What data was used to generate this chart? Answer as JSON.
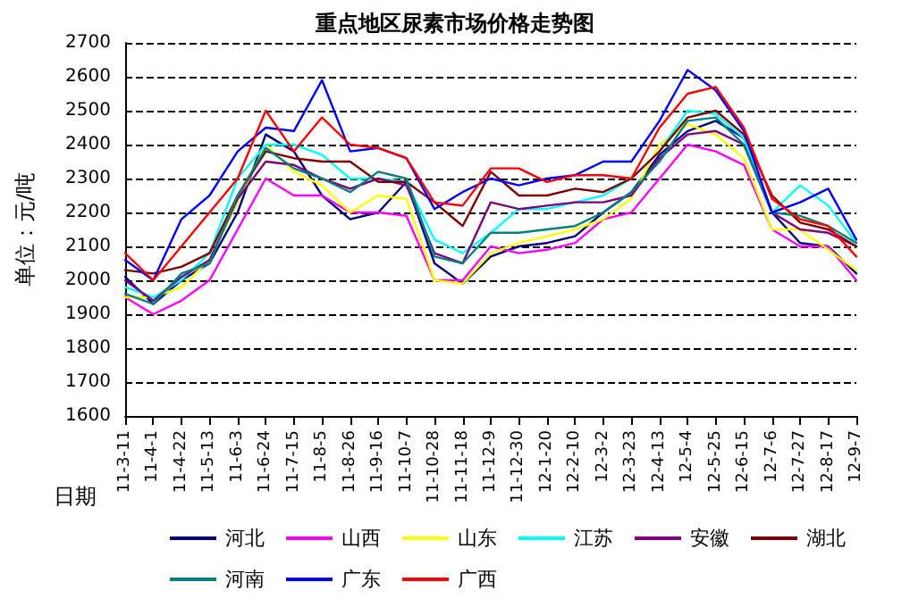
{
  "chart_data": {
    "type": "line",
    "title": "重点地区尿素市场价格走势图",
    "xlabel": "日期",
    "ylabel": "单位：元/吨",
    "categories": [
      "11-3-11",
      "11-4-1",
      "11-4-22",
      "11-5-13",
      "11-6-3",
      "11-6-24",
      "11-7-15",
      "11-8-5",
      "11-8-26",
      "11-9-16",
      "11-10-7",
      "11-10-28",
      "11-11-18",
      "11-12-9",
      "11-12-30",
      "12-1-20",
      "12-2-10",
      "12-3-2",
      "12-3-23",
      "12-4-13",
      "12-5-4",
      "12-5-25",
      "12-6-15",
      "12-7-6",
      "12-7-27",
      "12-8-17",
      "12-9-7"
    ],
    "series": [
      {
        "name": "河北",
        "color": "#000080",
        "values": [
          2010,
          1930,
          2000,
          2050,
          2200,
          2430,
          2380,
          2250,
          2180,
          2200,
          2290,
          2050,
          1990,
          2070,
          2100,
          2110,
          2130,
          2200,
          2260,
          2370,
          2440,
          2470,
          2420,
          2200,
          2110,
          2100,
          2020
        ]
      },
      {
        "name": "山西",
        "color": "#ff00ff",
        "values": [
          1950,
          1900,
          1940,
          2000,
          2150,
          2300,
          2250,
          2250,
          2200,
          2200,
          2190,
          2000,
          2000,
          2100,
          2080,
          2090,
          2110,
          2180,
          2200,
          2300,
          2400,
          2380,
          2340,
          2150,
          2100,
          2100,
          2000
        ]
      },
      {
        "name": "山东",
        "color": "#ffff00",
        "values": [
          1950,
          1950,
          1980,
          2060,
          2230,
          2400,
          2320,
          2280,
          2200,
          2250,
          2240,
          2000,
          1990,
          2080,
          2110,
          2130,
          2150,
          2180,
          2240,
          2400,
          2460,
          2430,
          2360,
          2150,
          2150,
          2090,
          2030
        ]
      },
      {
        "name": "江苏",
        "color": "#00ffff",
        "values": [
          1980,
          1950,
          2000,
          2080,
          2300,
          2400,
          2400,
          2370,
          2300,
          2300,
          2290,
          2120,
          2080,
          2140,
          2210,
          2210,
          2230,
          2250,
          2300,
          2380,
          2500,
          2490,
          2420,
          2200,
          2280,
          2220,
          2110
        ]
      },
      {
        "name": "安徽",
        "color": "#800080",
        "values": [
          2000,
          1940,
          2010,
          2060,
          2240,
          2350,
          2340,
          2300,
          2270,
          2300,
          2280,
          2080,
          2050,
          2230,
          2210,
          2220,
          2230,
          2230,
          2250,
          2360,
          2430,
          2440,
          2400,
          2200,
          2150,
          2140,
          2100
        ]
      },
      {
        "name": "湖北",
        "color": "#800000",
        "values": [
          2030,
          2020,
          2040,
          2080,
          2250,
          2380,
          2360,
          2350,
          2350,
          2290,
          2290,
          2230,
          2160,
          2320,
          2250,
          2250,
          2270,
          2260,
          2300,
          2380,
          2480,
          2500,
          2430,
          2250,
          2170,
          2150,
          2100
        ]
      },
      {
        "name": "河南",
        "color": "#008080",
        "values": [
          1960,
          1930,
          2020,
          2050,
          2250,
          2390,
          2330,
          2300,
          2260,
          2320,
          2300,
          2070,
          2050,
          2140,
          2140,
          2150,
          2160,
          2200,
          2260,
          2350,
          2470,
          2480,
          2400,
          2200,
          2190,
          2160,
          2110
        ]
      },
      {
        "name": "广东",
        "color": "#0000ff",
        "values": [
          2060,
          2000,
          2180,
          2250,
          2380,
          2450,
          2440,
          2590,
          2380,
          2390,
          2360,
          2210,
          2260,
          2300,
          2280,
          2300,
          2310,
          2350,
          2350,
          2470,
          2620,
          2560,
          2440,
          2200,
          2230,
          2270,
          2120
        ]
      },
      {
        "name": "广西",
        "color": "#ff0000",
        "values": [
          2080,
          2000,
          2100,
          2200,
          2300,
          2500,
          2380,
          2480,
          2400,
          2390,
          2360,
          2230,
          2220,
          2330,
          2330,
          2290,
          2310,
          2310,
          2300,
          2450,
          2550,
          2570,
          2450,
          2240,
          2180,
          2160,
          2070
        ]
      }
    ],
    "ylim": [
      1600,
      2700
    ],
    "yticks": [
      1600,
      1700,
      1800,
      1900,
      2000,
      2100,
      2200,
      2300,
      2400,
      2500,
      2600,
      2700
    ],
    "grid": "y",
    "legend": "bottom",
    "marker": "none",
    "line_style": "solid"
  }
}
